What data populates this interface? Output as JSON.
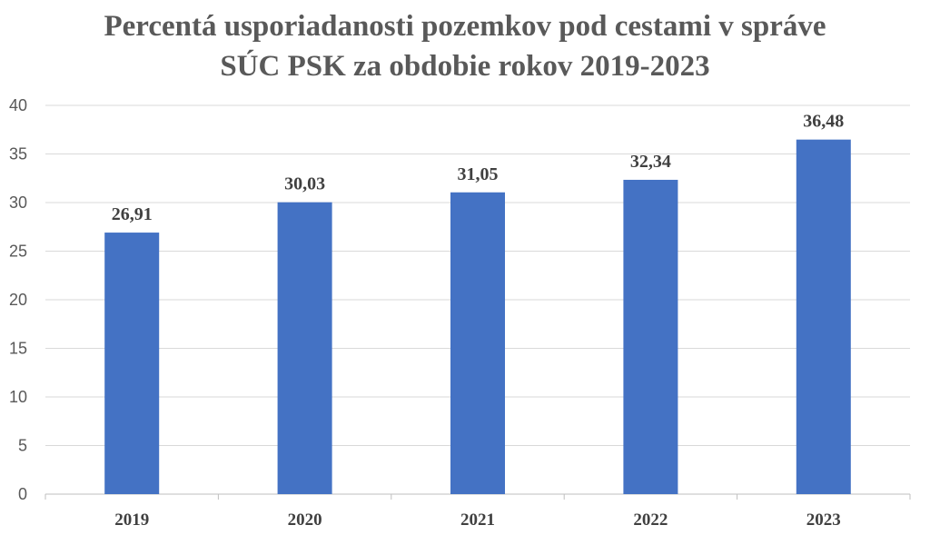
{
  "chart_data": {
    "type": "bar",
    "title_lines": [
      "Percentá usporiadanosti pozemkov pod cestami v správe",
      "SÚC PSK za obdobie rokov 2019-2023"
    ],
    "categories": [
      "2019",
      "2020",
      "2021",
      "2022",
      "2023"
    ],
    "values": [
      26.91,
      30.03,
      31.05,
      32.34,
      36.48
    ],
    "data_labels": [
      "26,91",
      "30,03",
      "31,05",
      "32,34",
      "36,48"
    ],
    "ylim": [
      0,
      40
    ],
    "yticks": [
      "0",
      "5",
      "10",
      "15",
      "20",
      "25",
      "30",
      "35",
      "40"
    ],
    "grid": true,
    "legend": "none",
    "colors": {
      "bar": "#4472C4",
      "grid": "#D9D9D9",
      "axis": "#BFBFBF"
    }
  }
}
